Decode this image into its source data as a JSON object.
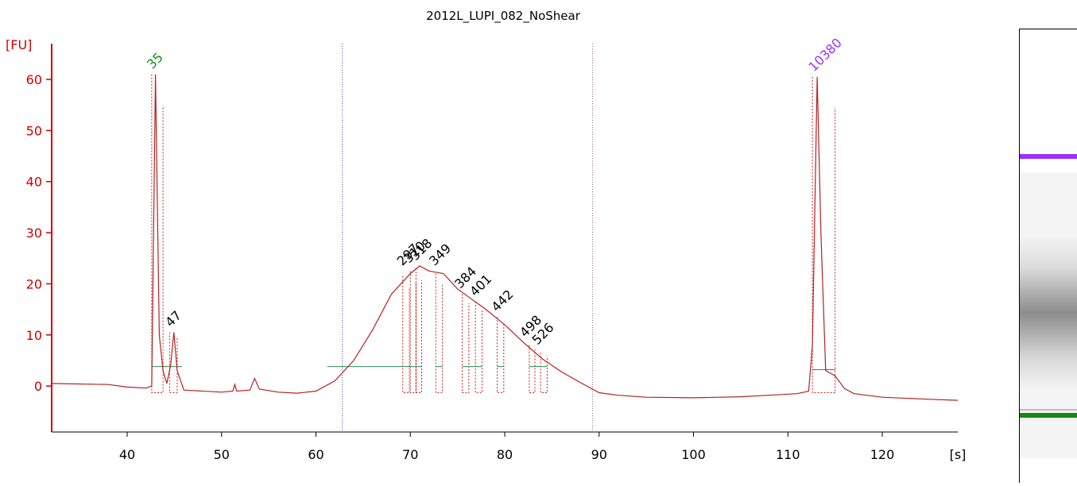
{
  "chart_data": {
    "type": "line",
    "title": "2012L_LUPI_082_NoShear",
    "ylabel": "[FU]",
    "xunit": "[s]",
    "xlim": [
      32,
      128
    ],
    "ylim": [
      -9,
      67
    ],
    "xticks": [
      40,
      50,
      60,
      70,
      80,
      90,
      100,
      110,
      120
    ],
    "yticks": [
      0,
      10,
      20,
      30,
      40,
      50,
      60
    ],
    "region_markers_x": [
      62.8,
      89.3
    ],
    "series": [
      {
        "color": "#b22222",
        "points": [
          [
            32,
            0.5
          ],
          [
            38,
            0.3
          ],
          [
            40,
            -0.2
          ],
          [
            42,
            -0.4
          ],
          [
            42.6,
            0
          ],
          [
            43.0,
            61
          ],
          [
            43.4,
            10
          ],
          [
            43.8,
            3
          ],
          [
            44.2,
            0.5
          ],
          [
            44.6,
            4
          ],
          [
            44.95,
            10.5
          ],
          [
            45.3,
            3
          ],
          [
            46,
            -0.8
          ],
          [
            50,
            -1.2
          ],
          [
            51.2,
            -1.0
          ],
          [
            51.4,
            0.3
          ],
          [
            51.6,
            -1.0
          ],
          [
            53,
            -0.8
          ],
          [
            53.5,
            1.5
          ],
          [
            54,
            -0.6
          ],
          [
            56,
            -1.2
          ],
          [
            58,
            -1.4
          ],
          [
            60,
            -1.0
          ],
          [
            62,
            1
          ],
          [
            64,
            5
          ],
          [
            66,
            11
          ],
          [
            68,
            18
          ],
          [
            70,
            22
          ],
          [
            71,
            23.5
          ],
          [
            72,
            22.5
          ],
          [
            73.5,
            22
          ],
          [
            75,
            19
          ],
          [
            76.5,
            17
          ],
          [
            78,
            15
          ],
          [
            80,
            12
          ],
          [
            82,
            8.5
          ],
          [
            84,
            5.3
          ],
          [
            86,
            2.8
          ],
          [
            88,
            0.7
          ],
          [
            90,
            -1.3
          ],
          [
            92,
            -1.8
          ],
          [
            95,
            -2.2
          ],
          [
            100,
            -2.3
          ],
          [
            105,
            -2.1
          ],
          [
            108,
            -1.8
          ],
          [
            111,
            -1.5
          ],
          [
            112.2,
            -1.0
          ],
          [
            112.6,
            8
          ],
          [
            113.1,
            60.5
          ],
          [
            113.5,
            30
          ],
          [
            114,
            3
          ],
          [
            115,
            2
          ],
          [
            116,
            -0.5
          ],
          [
            117,
            -1.5
          ],
          [
            120,
            -2.2
          ],
          [
            125,
            -2.6
          ],
          [
            128,
            -2.8
          ]
        ]
      }
    ],
    "peak_labels": [
      {
        "x": 43.0,
        "y": 61,
        "text": "35",
        "color": "#1a8c1a"
      },
      {
        "x": 44.95,
        "y": 10.5,
        "text": "47",
        "color": "#000000"
      },
      {
        "x": 69.5,
        "y": 22.5,
        "text": "297",
        "color": "#000000"
      },
      {
        "x": 70.2,
        "y": 23,
        "text": "310",
        "color": "#000000"
      },
      {
        "x": 70.9,
        "y": 23.5,
        "text": "318",
        "color": "#000000"
      },
      {
        "x": 72.9,
        "y": 22.5,
        "text": "349",
        "color": "#000000"
      },
      {
        "x": 75.6,
        "y": 18,
        "text": "384",
        "color": "#000000"
      },
      {
        "x": 77.2,
        "y": 16.5,
        "text": "401",
        "color": "#000000"
      },
      {
        "x": 79.5,
        "y": 13.5,
        "text": "442",
        "color": "#000000"
      },
      {
        "x": 82.5,
        "y": 8.5,
        "text": "498",
        "color": "#000000"
      },
      {
        "x": 83.8,
        "y": 7,
        "text": "526",
        "color": "#000000"
      },
      {
        "x": 113.1,
        "y": 60.5,
        "text": "10380",
        "color": "#9b30ff"
      }
    ],
    "peak_bars": [
      {
        "x1": 42.6,
        "x2": 43.8,
        "top": 61
      },
      {
        "x1": 44.5,
        "x2": 45.3,
        "top": 10.5
      },
      {
        "x1": 69.2,
        "x2": 69.9,
        "top": 21.5
      },
      {
        "x1": 70.0,
        "x2": 70.6,
        "top": 22.5
      },
      {
        "x1": 70.6,
        "x2": 71.2,
        "top": 23
      },
      {
        "x1": 72.7,
        "x2": 73.4,
        "top": 22
      },
      {
        "x1": 75.5,
        "x2": 76.2,
        "top": 18
      },
      {
        "x1": 76.9,
        "x2": 77.6,
        "top": 16.5
      },
      {
        "x1": 79.2,
        "x2": 79.9,
        "top": 13.5
      },
      {
        "x1": 82.6,
        "x2": 83.2,
        "top": 8
      },
      {
        "x1": 83.8,
        "x2": 84.5,
        "top": 6.5
      },
      {
        "x1": 112.6,
        "x2": 115.0,
        "top": 60.5
      }
    ],
    "baselines": [
      {
        "x1": 42.6,
        "x2": 45.8,
        "y": 3.8
      },
      {
        "x1": 61.2,
        "x2": 69.3,
        "y": 3.8
      },
      {
        "x1": 69.3,
        "x2": 71.2,
        "y": 3.8
      },
      {
        "x1": 72.7,
        "x2": 73.4,
        "y": 3.8
      },
      {
        "x1": 75.5,
        "x2": 77.6,
        "y": 3.8
      },
      {
        "x1": 79.2,
        "x2": 79.9,
        "y": 3.8
      },
      {
        "x1": 82.6,
        "x2": 84.5,
        "y": 3.8
      },
      {
        "x1": 112.6,
        "x2": 115.0,
        "y": 3.2
      }
    ]
  },
  "gel": {
    "upper_marker_color": "#9b30ff",
    "lower_marker_color": "#138a13"
  }
}
